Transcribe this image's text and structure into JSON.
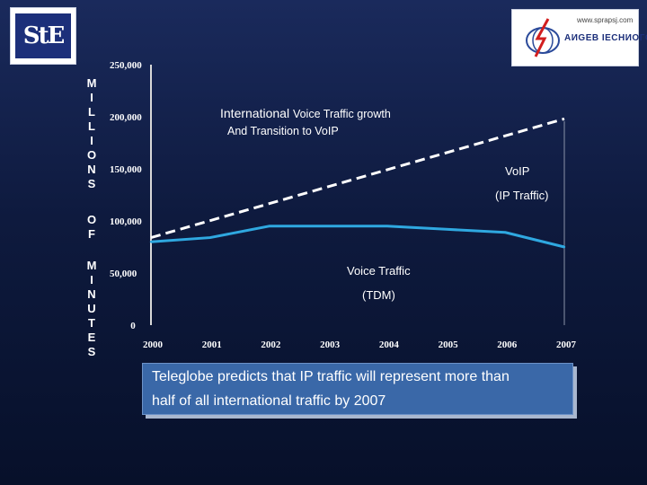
{
  "logos": {
    "left_text": "StE",
    "right_url": "www.sprapsj.com",
    "right_name": "AИGEB IECHИOГOGЯ"
  },
  "ylabel": {
    "word1": [
      "M",
      "I",
      "L",
      "L",
      "I",
      "O",
      "N",
      "S"
    ],
    "word2": [
      "O",
      "F"
    ],
    "word3": [
      "M",
      "I",
      "N",
      "U",
      "T",
      "E",
      "S"
    ]
  },
  "chart_data": {
    "type": "line",
    "title_part1": "International ",
    "title_part2": "Voice Traffic growth",
    "subtitle": "And Transition to VoIP",
    "y_tick_labels": [
      "250,000",
      "200,000",
      "150,000",
      "100,000",
      "50,000",
      "0"
    ],
    "y_ticks": [
      250000,
      200000,
      150000,
      100000,
      50000,
      0
    ],
    "x_tick_labels": [
      "2000",
      "2001",
      "2002",
      "2003",
      "2004",
      "2005",
      "2006",
      "2007"
    ],
    "ylim": [
      0,
      250000
    ],
    "series": [
      {
        "style": "dashed",
        "color": "#ffffff",
        "label_line1": "VoIP",
        "label_line2": "(IP Traffic)",
        "x": [
          2000,
          2007
        ],
        "y": [
          84000,
          198000
        ]
      },
      {
        "style": "solid",
        "color": "#2fa8e0",
        "label_line1": "Voice Traffic",
        "label_line2": "(TDM)",
        "x": [
          2000,
          2001,
          2002,
          2003,
          2004,
          2005,
          2006,
          2007
        ],
        "y": [
          80000,
          84000,
          95000,
          95000,
          95000,
          92000,
          89000,
          75000
        ]
      }
    ]
  },
  "callout": {
    "line1": "Teleglobe predicts that IP traffic will represent more than",
    "line2": "half of all international traffic by 2007"
  },
  "colors": {
    "axis": "#d8d8d8",
    "voip_line": "#ffffff",
    "tdm_line": "#2fa8e0",
    "callout_bg": "#3a68a8"
  }
}
